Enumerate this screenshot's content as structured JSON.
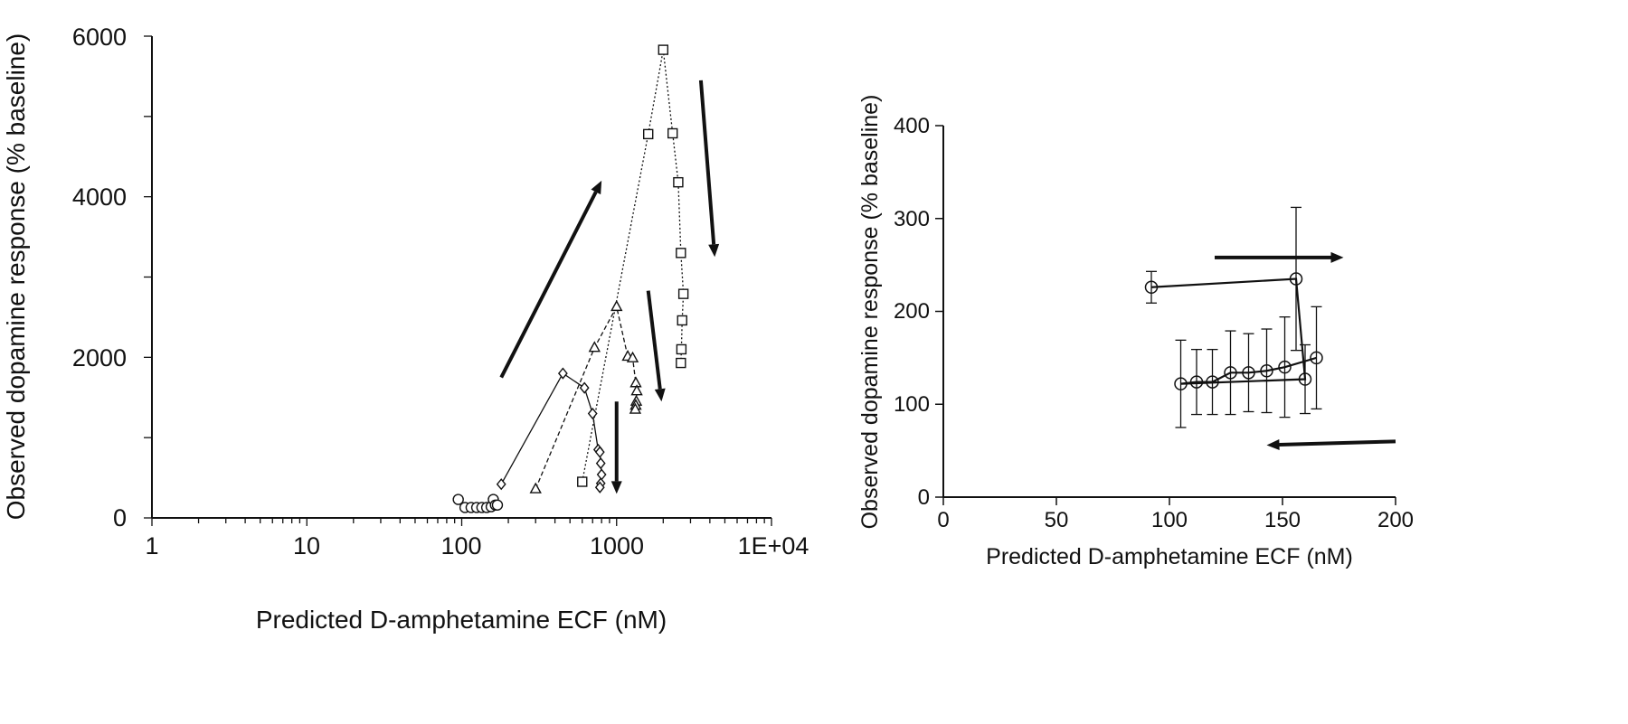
{
  "chart_data": [
    {
      "type": "line",
      "title": "",
      "xlabel": "Predicted D-amphetamine ECF (nM)",
      "ylabel": "Observed dopamine response (% baseline)",
      "xscale": "log",
      "xlim": [
        1,
        10000
      ],
      "ylim": [
        0,
        6000
      ],
      "x_tick_labels": [
        "1",
        "10",
        "100",
        "1000",
        "1E+04"
      ],
      "y_tick_labels": [
        "0",
        "2000",
        "4000",
        "6000"
      ],
      "series": [
        {
          "marker": "circle",
          "line": "none",
          "points": [
            [
              95,
              230
            ],
            [
              105,
              130
            ],
            [
              115,
              130
            ],
            [
              125,
              130
            ],
            [
              135,
              130
            ],
            [
              145,
              130
            ],
            [
              155,
              140
            ],
            [
              160,
              230
            ],
            [
              165,
              160
            ],
            [
              170,
              160
            ]
          ]
        },
        {
          "marker": "diamond",
          "line": "solid",
          "points": [
            [
              180,
              420
            ],
            [
              450,
              1800
            ],
            [
              620,
              1620
            ],
            [
              700,
              1300
            ],
            [
              760,
              850
            ],
            [
              780,
              820
            ],
            [
              790,
              680
            ],
            [
              800,
              540
            ],
            [
              790,
              430
            ],
            [
              780,
              380
            ]
          ]
        },
        {
          "marker": "triangle",
          "line": "dashed",
          "points": [
            [
              300,
              360
            ],
            [
              720,
              2120
            ],
            [
              1000,
              2630
            ],
            [
              1180,
              2010
            ],
            [
              1270,
              1990
            ],
            [
              1330,
              1680
            ],
            [
              1350,
              1580
            ],
            [
              1340,
              1450
            ],
            [
              1330,
              1400
            ],
            [
              1320,
              1350
            ]
          ]
        },
        {
          "marker": "square",
          "line": "dotted",
          "points": [
            [
              600,
              450
            ],
            [
              1600,
              4780
            ],
            [
              2000,
              5830
            ],
            [
              2300,
              4790
            ],
            [
              2500,
              4180
            ],
            [
              2600,
              3300
            ],
            [
              2700,
              2790
            ],
            [
              2650,
              2460
            ],
            [
              2620,
              2100
            ],
            [
              2600,
              1930
            ]
          ]
        }
      ],
      "arrows": [
        {
          "from": [
            180,
            1750
          ],
          "to": [
            800,
            4200
          ]
        },
        {
          "from": [
            3500,
            5450
          ],
          "to": [
            4300,
            3250
          ]
        },
        {
          "from": [
            1600,
            2830
          ],
          "to": [
            1950,
            1450
          ]
        },
        {
          "from": [
            1000,
            1450
          ],
          "to": [
            1000,
            300
          ]
        }
      ]
    },
    {
      "type": "line",
      "title": "",
      "xlabel": "Predicted D-amphetamine ECF (nM)",
      "ylabel": "Observed dopamine response (% baseline)",
      "xlim": [
        0,
        200
      ],
      "ylim": [
        0,
        400
      ],
      "x_tick_labels": [
        "0",
        "50",
        "100",
        "150",
        "200"
      ],
      "y_tick_labels": [
        "0",
        "100",
        "200",
        "300",
        "400"
      ],
      "series": [
        {
          "marker": "circle",
          "line": "solid",
          "points": [
            [
              92,
              226
            ],
            [
              156,
              235
            ],
            [
              160,
              127
            ],
            [
              105,
              122
            ],
            [
              112,
              124
            ],
            [
              119,
              124
            ],
            [
              127,
              134
            ],
            [
              135,
              134
            ],
            [
              143,
              136
            ],
            [
              151,
              140
            ],
            [
              165,
              150
            ]
          ],
          "errors": [
            17,
            77,
            37,
            47,
            35,
            35,
            45,
            42,
            45,
            54,
            55
          ]
        }
      ],
      "arrows": [
        {
          "from": [
            120,
            258
          ],
          "to": [
            177,
            258
          ]
        },
        {
          "from": [
            200,
            60
          ],
          "to": [
            143,
            56
          ]
        }
      ]
    }
  ]
}
